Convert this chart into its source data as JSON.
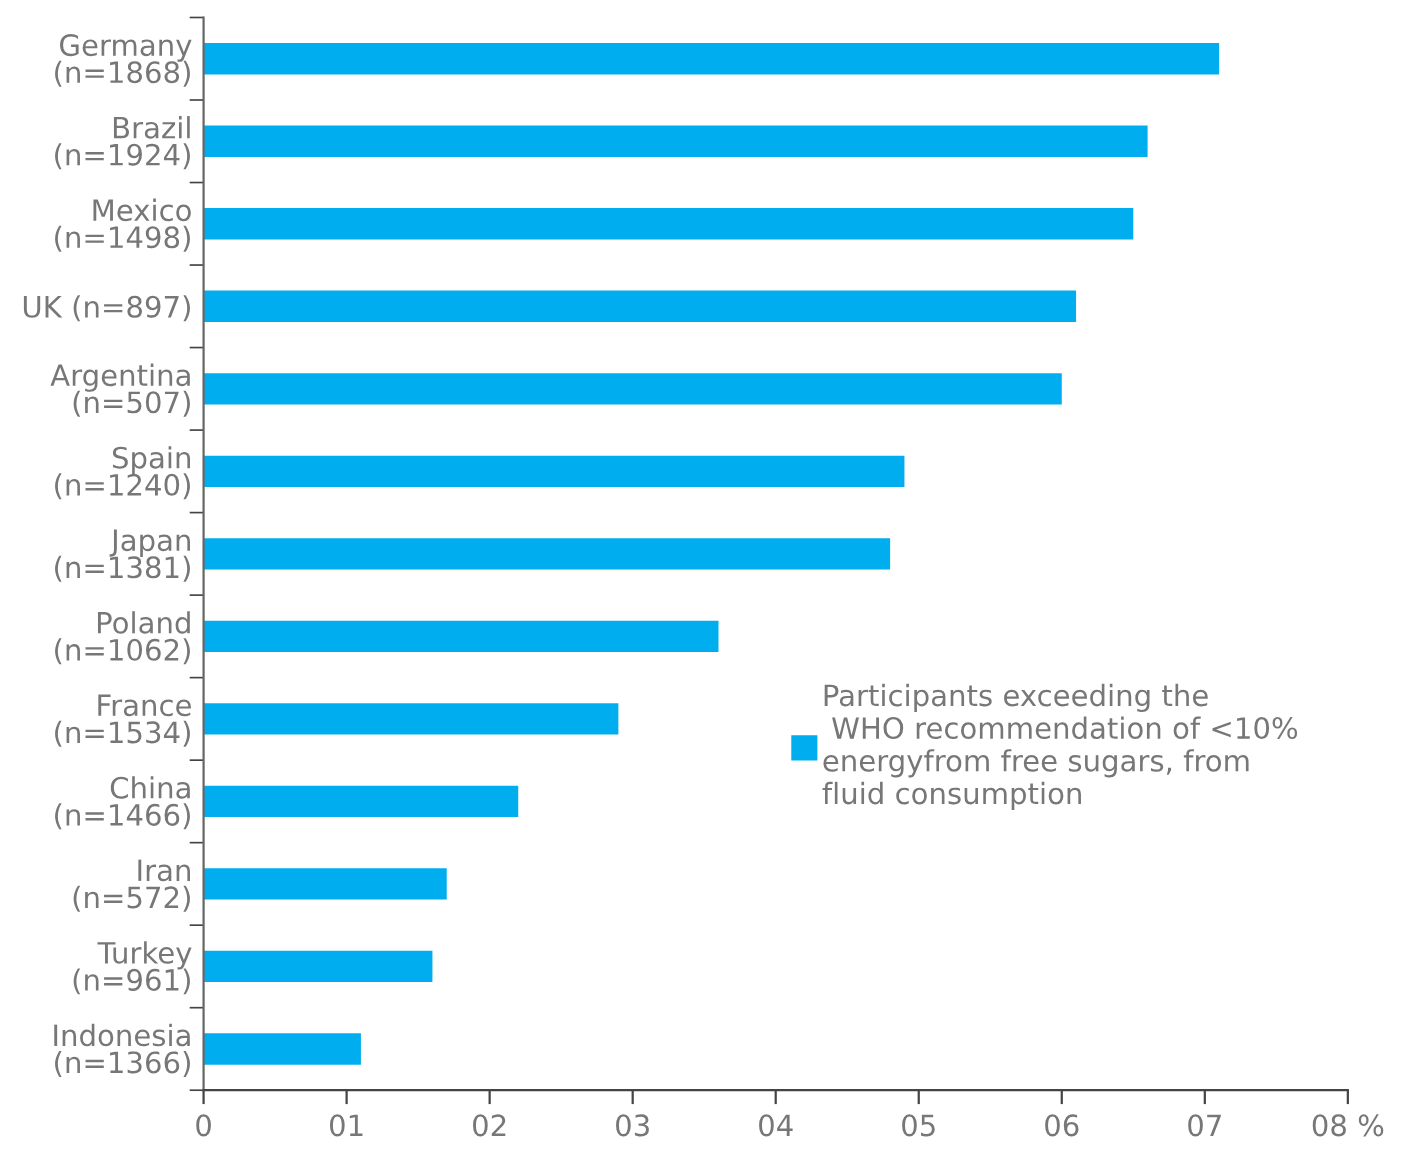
{
  "chart_data": {
    "type": "bar",
    "orientation": "horizontal",
    "categories": [
      "Germany\n(n=1868)",
      "Brazil\n(n=1924)",
      "Mexico\n(n=1498)",
      "UK (n=897)",
      "Argentina\n(n=507)",
      "Spain\n(n=1240)",
      "Japan\n(n=1381)",
      "Poland\n(n=1062)",
      "France\n(n=1534)",
      "China\n(n=1466)",
      "Iran\n(n=572)",
      "Turkey\n(n=961)",
      "Indonesia\n(n=1366)"
    ],
    "series": [
      {
        "name": "Participants exceeding the\n WHO recommendation of <10%\nenergyfrom free sugars, from\nfluid consumption",
        "color": "#00aeef",
        "values": [
          7.1,
          6.6,
          6.5,
          6.1,
          6.0,
          4.9,
          4.8,
          3.6,
          2.9,
          2.2,
          1.7,
          1.6,
          1.1
        ]
      }
    ],
    "xlim": [
      0,
      8
    ],
    "xticks": [
      0,
      {
        "value": 1,
        "label": "01"
      },
      {
        "value": 2,
        "label": "02"
      },
      {
        "value": 3,
        "label": "03"
      },
      {
        "value": 4,
        "label": "04"
      },
      {
        "value": 5,
        "label": "05"
      },
      {
        "value": 6,
        "label": "06"
      },
      {
        "value": 7,
        "label": "07"
      },
      {
        "value": 8,
        "label": "08 %"
      }
    ],
    "legend": "right",
    "grid": false
  }
}
